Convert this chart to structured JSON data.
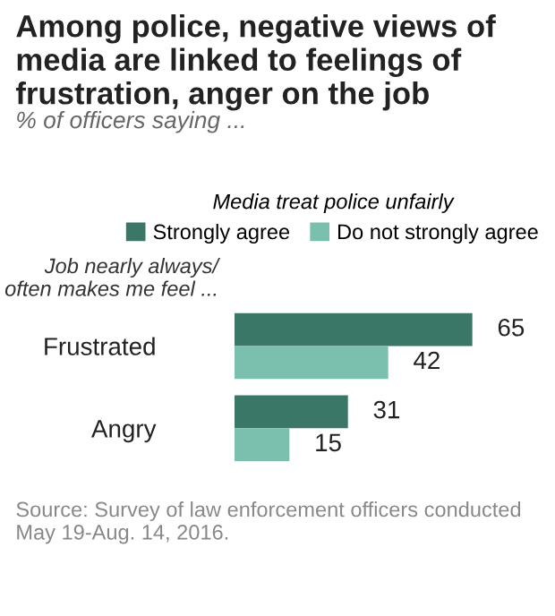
{
  "chart_data": {
    "type": "bar",
    "orientation": "horizontal",
    "title": "Among police, negative views of media are linked to feelings of frustration, anger on the job",
    "subtitle": "% of officers saying ...",
    "ylabel": "Job nearly always/\noften makes me feel ...",
    "legend_title": "Media treat police unfairly",
    "categories": [
      "Frustrated",
      "Angry"
    ],
    "series": [
      {
        "name": "Strongly agree",
        "color": "#3a7767",
        "values": [
          65,
          31
        ]
      },
      {
        "name": "Do not strongly agree",
        "color": "#7bbfae",
        "values": [
          42,
          15
        ]
      }
    ],
    "tick_labels": "y",
    "data_labels": true,
    "grid": false,
    "legend": "top",
    "annotations": [
      "Source: Survey of law enforcement officers conducted May 19-Aug. 14, 2016."
    ]
  }
}
